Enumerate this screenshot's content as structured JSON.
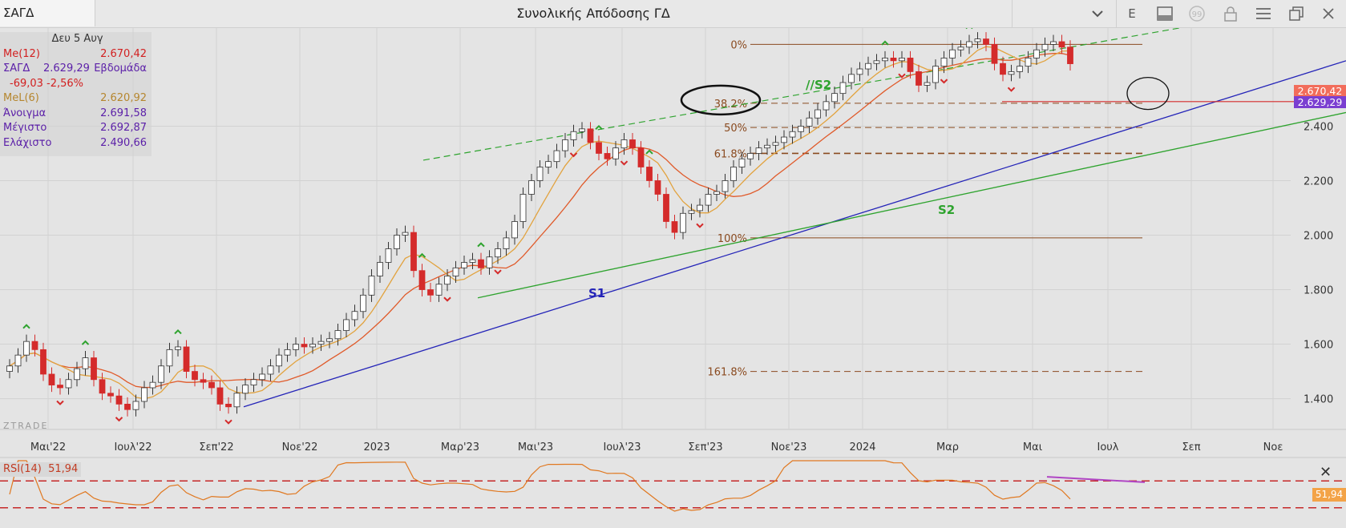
{
  "titlebar": {
    "symbol": "ΣΑΓΔ",
    "title": "Συνολικής Απόδοσης ΓΔ",
    "e_label": "E"
  },
  "info_panel": {
    "date": "Δευ 5 Αυγ",
    "me12_label": "Me(12)",
    "me12_value": "2.670,42",
    "symbol_label": "ΣΑΓΔ",
    "symbol_value": "2.629,29",
    "period": "Εβδομάδα",
    "change": "-69,03 -2,56%",
    "mel6_label": "MeL(6)",
    "mel6_value": "2.620,92",
    "open_label": "Άνοιγμα",
    "open_value": "2.691,58",
    "high_label": "Μέγιστο",
    "high_value": "2.692,87",
    "low_label": "Ελάχιστο",
    "low_value": "2.490,66"
  },
  "brand": "ZTRADE",
  "price_tags": {
    "ma12": "2.670,42",
    "last": "2.629,29"
  },
  "rsi": {
    "label": "RSI(14)",
    "value": "51,94",
    "close": "✕",
    "ylim": [
      0,
      100
    ],
    "levels": [
      70,
      30
    ]
  },
  "colors": {
    "up_candle": "#ffffff",
    "down_candle": "#d42b2b",
    "ma12": "#e05a2a",
    "mel6": "#e2a33f",
    "s1": "#2424b8",
    "s2": "#2ea32e",
    "fib": "#8a4a1f",
    "rsi": "#e07820",
    "price_ma": "#f26d5b",
    "price_last": "#7b3fd1"
  },
  "chart_data": {
    "type": "candlestick",
    "title": "Συνολικής Απόδοσης ΓΔ",
    "ylim": [
      1290,
      2760
    ],
    "y_ticks": [
      "1.400",
      "1.600",
      "1.800",
      "2.000",
      "2.200",
      "2.400"
    ],
    "x_tick_labels": [
      "Μαι'22",
      "Ιουλ'22",
      "Σεπ'22",
      "Νοε'22",
      "2023",
      "Μαρ'23",
      "Μαι'23",
      "Ιουλ'23",
      "Σεπ'23",
      "Νοε'23",
      "2024",
      "Μαρ",
      "Μαι",
      "Ιουλ",
      "Σεπ",
      "Νοε"
    ],
    "closes": [
      1520,
      1560,
      1610,
      1580,
      1490,
      1450,
      1440,
      1470,
      1510,
      1550,
      1470,
      1420,
      1410,
      1380,
      1360,
      1390,
      1440,
      1460,
      1520,
      1580,
      1590,
      1500,
      1470,
      1460,
      1440,
      1380,
      1370,
      1420,
      1450,
      1470,
      1490,
      1520,
      1560,
      1580,
      1600,
      1590,
      1600,
      1610,
      1620,
      1650,
      1690,
      1720,
      1780,
      1850,
      1900,
      1950,
      2000,
      2010,
      1870,
      1800,
      1780,
      1820,
      1850,
      1880,
      1900,
      1910,
      1880,
      1920,
      1950,
      1990,
      2050,
      2150,
      2200,
      2250,
      2270,
      2310,
      2350,
      2380,
      2390,
      2340,
      2300,
      2280,
      2320,
      2350,
      2320,
      2250,
      2200,
      2150,
      2050,
      2010,
      2080,
      2090,
      2110,
      2150,
      2160,
      2200,
      2250,
      2280,
      2300,
      2320,
      2330,
      2340,
      2360,
      2380,
      2400,
      2430,
      2460,
      2490,
      2520,
      2560,
      2590,
      2610,
      2630,
      2640,
      2650,
      2640,
      2650,
      2600,
      2550,
      2560,
      2620,
      2650,
      2680,
      2690,
      2710,
      2720,
      2700,
      2630,
      2590,
      2600,
      2620,
      2650,
      2680,
      2700,
      2710,
      2690,
      2629
    ],
    "fib_levels": [
      {
        "label": "0%",
        "value": 2700
      },
      {
        "label": "38.2%",
        "value": 2484
      },
      {
        "label": "50%",
        "value": 2395
      },
      {
        "label": "61.8%",
        "value": 2300
      },
      {
        "label": "100%",
        "value": 1990
      },
      {
        "label": "161.8%",
        "value": 1500
      }
    ],
    "lines": [
      {
        "label": "S1",
        "type": "support",
        "from": [
          1370,
          "Σεπ'22"
        ],
        "to": [
          2660,
          "Νοε"
        ]
      },
      {
        "label": "S2",
        "type": "support"
      },
      {
        "label": "//S2",
        "type": "parallel"
      }
    ]
  }
}
